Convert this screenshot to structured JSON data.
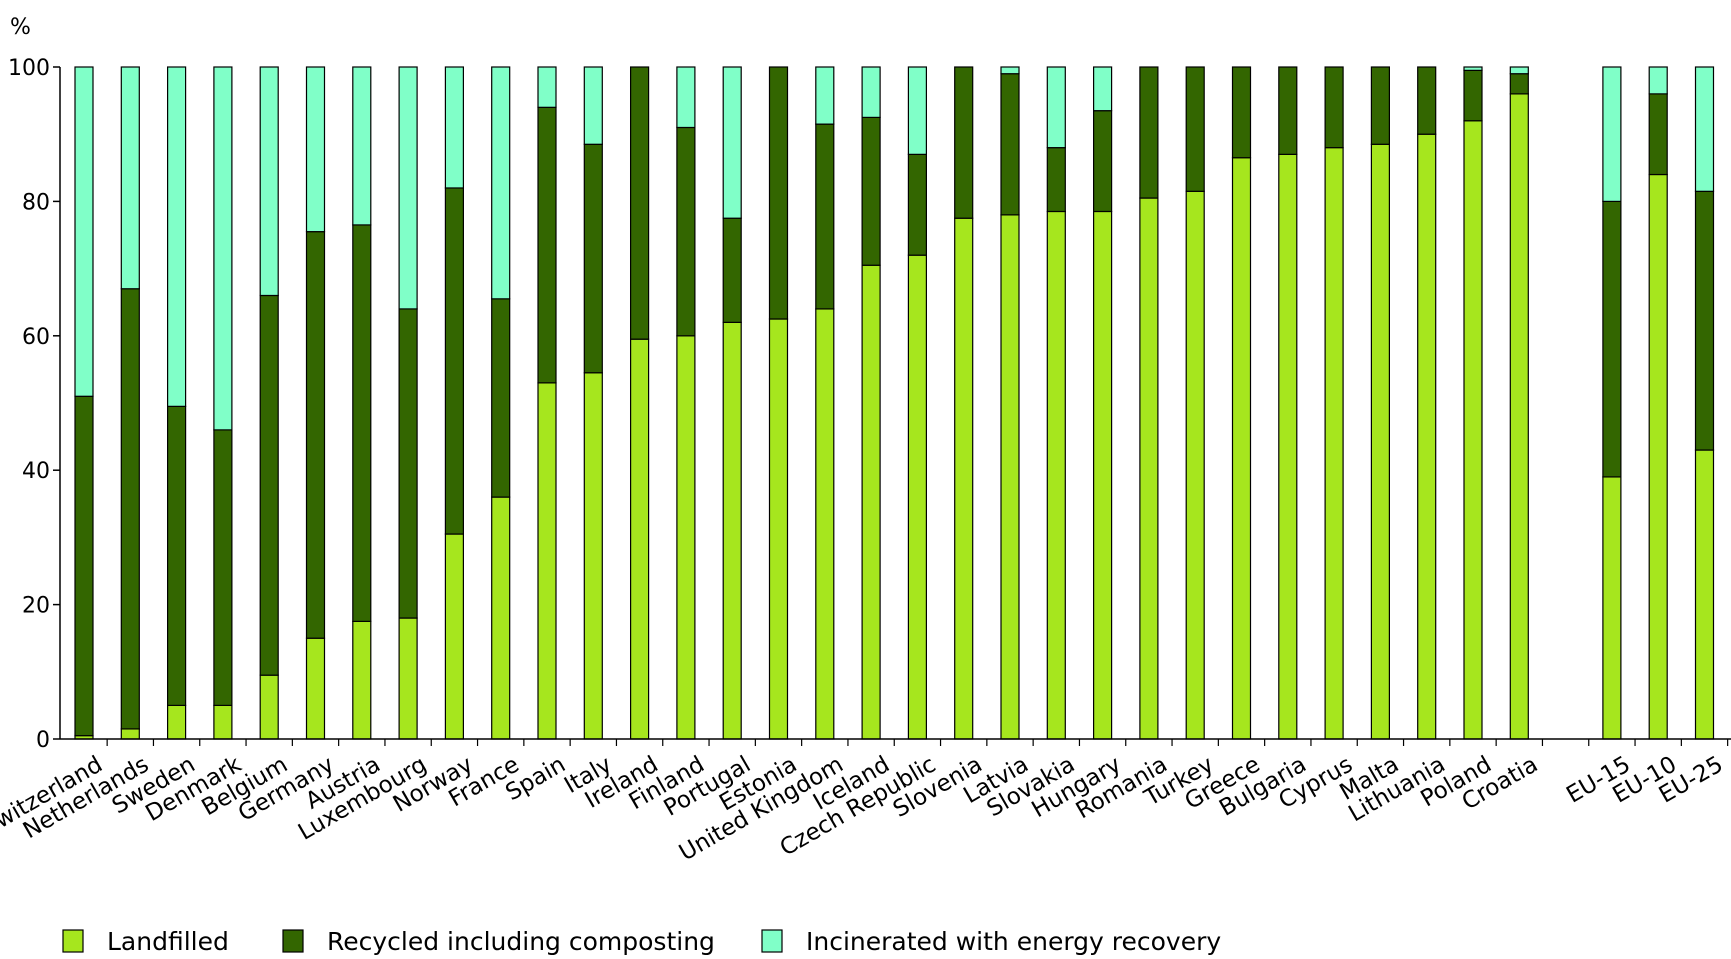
{
  "chart_data": {
    "type": "bar",
    "stacked": true,
    "ylabel": "%",
    "ylim": [
      0,
      100
    ],
    "yticks": [
      0,
      20,
      40,
      60,
      80,
      100
    ],
    "grid": false,
    "legend_position": "bottom",
    "categories": [
      "Switzerland",
      "Netherlands",
      "Sweden",
      "Denmark",
      "Belgium",
      "Germany",
      "Austria",
      "Luxembourg",
      "Norway",
      "France",
      "Spain",
      "Italy",
      "Ireland",
      "Finland",
      "Portugal",
      "Estonia",
      "United Kingdom",
      "Iceland",
      "Czech Republic",
      "Slovenia",
      "Latvia",
      "Slovakia",
      "Hungary",
      "Romania",
      "Turkey",
      "Greece",
      "Bulgaria",
      "Cyprus",
      "Malta",
      "Lithuania",
      "Poland",
      "Croatia",
      "",
      "EU-15",
      "EU-10",
      "EU-25"
    ],
    "series": [
      {
        "name": "Landfilled",
        "color": "#a6e61e",
        "values": [
          0.5,
          1.5,
          5,
          5,
          9.5,
          15,
          17.5,
          18,
          30.5,
          36,
          53,
          54.5,
          59.5,
          60,
          62,
          62.5,
          64,
          70.5,
          72,
          77.5,
          78,
          78.5,
          78.5,
          80.5,
          81.5,
          86.5,
          87,
          88,
          88.5,
          90,
          92,
          96,
          null,
          39,
          84,
          43
        ]
      },
      {
        "name": "Recycled including composting",
        "color": "#336600",
        "values": [
          50.5,
          65.5,
          44.5,
          41,
          56.5,
          60.5,
          59,
          46,
          51.5,
          29.5,
          41,
          34,
          40.5,
          31,
          15.5,
          37.5,
          27.5,
          22,
          15,
          22.5,
          21,
          9.5,
          15,
          19.5,
          18.5,
          13.5,
          13,
          12,
          11.5,
          10,
          7.5,
          3,
          null,
          41,
          12,
          38.5
        ]
      },
      {
        "name": "Incinerated with energy recovery",
        "color": "#80ffc8",
        "values": [
          49,
          33,
          50.5,
          54,
          34,
          24.5,
          23.5,
          36,
          18,
          34.5,
          6,
          11.5,
          0,
          9,
          22.5,
          0,
          8.5,
          7.5,
          13,
          0,
          1,
          12,
          6.5,
          0,
          0,
          0,
          0,
          0,
          0,
          0,
          0.5,
          1,
          null,
          20,
          4,
          18.5
        ]
      }
    ]
  }
}
